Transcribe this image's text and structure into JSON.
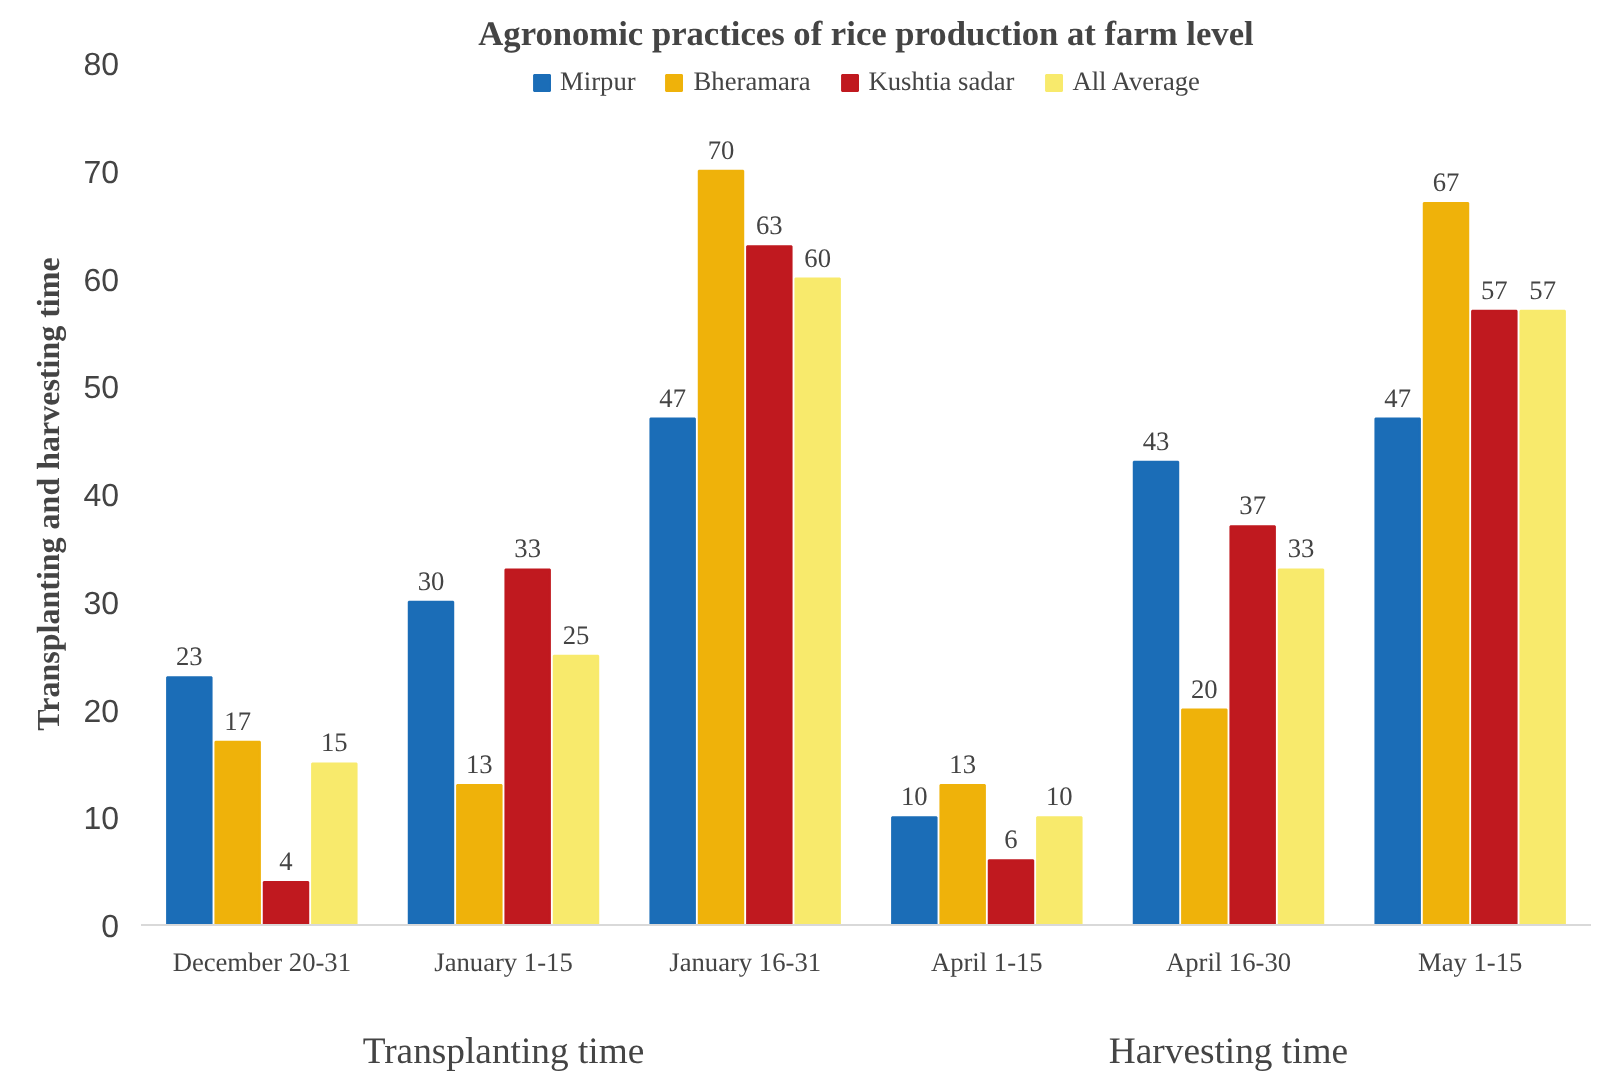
{
  "chart_data": {
    "type": "bar",
    "title": "Agronomic practices of rice production at farm level",
    "ylabel": "Transplanting and harvesting time",
    "categories": [
      "December 20-31",
      "January 1-15",
      "January 16-31",
      "April 1-15",
      "April 16-30",
      "May 1-15"
    ],
    "series": [
      {
        "name": "Mirpur",
        "color": "#1b6db7",
        "values": [
          23,
          30,
          47,
          10,
          43,
          47
        ]
      },
      {
        "name": "Bheramara",
        "color": "#efb20a",
        "values": [
          17,
          13,
          70,
          13,
          20,
          67
        ]
      },
      {
        "name": "Kushtia sadar",
        "color": "#c0191f",
        "values": [
          4,
          33,
          63,
          6,
          37,
          57
        ]
      },
      {
        "name": "All Average",
        "color": "#f8ea6c",
        "values": [
          15,
          25,
          60,
          10,
          33,
          57
        ]
      }
    ],
    "ylim": [
      0,
      80
    ],
    "yticks": [
      0,
      10,
      20,
      30,
      40,
      50,
      60,
      70,
      80
    ],
    "grid": false,
    "legend": "top",
    "data_labels": true,
    "annotations": [
      "Transplanting time",
      "Harvesting time"
    ]
  }
}
